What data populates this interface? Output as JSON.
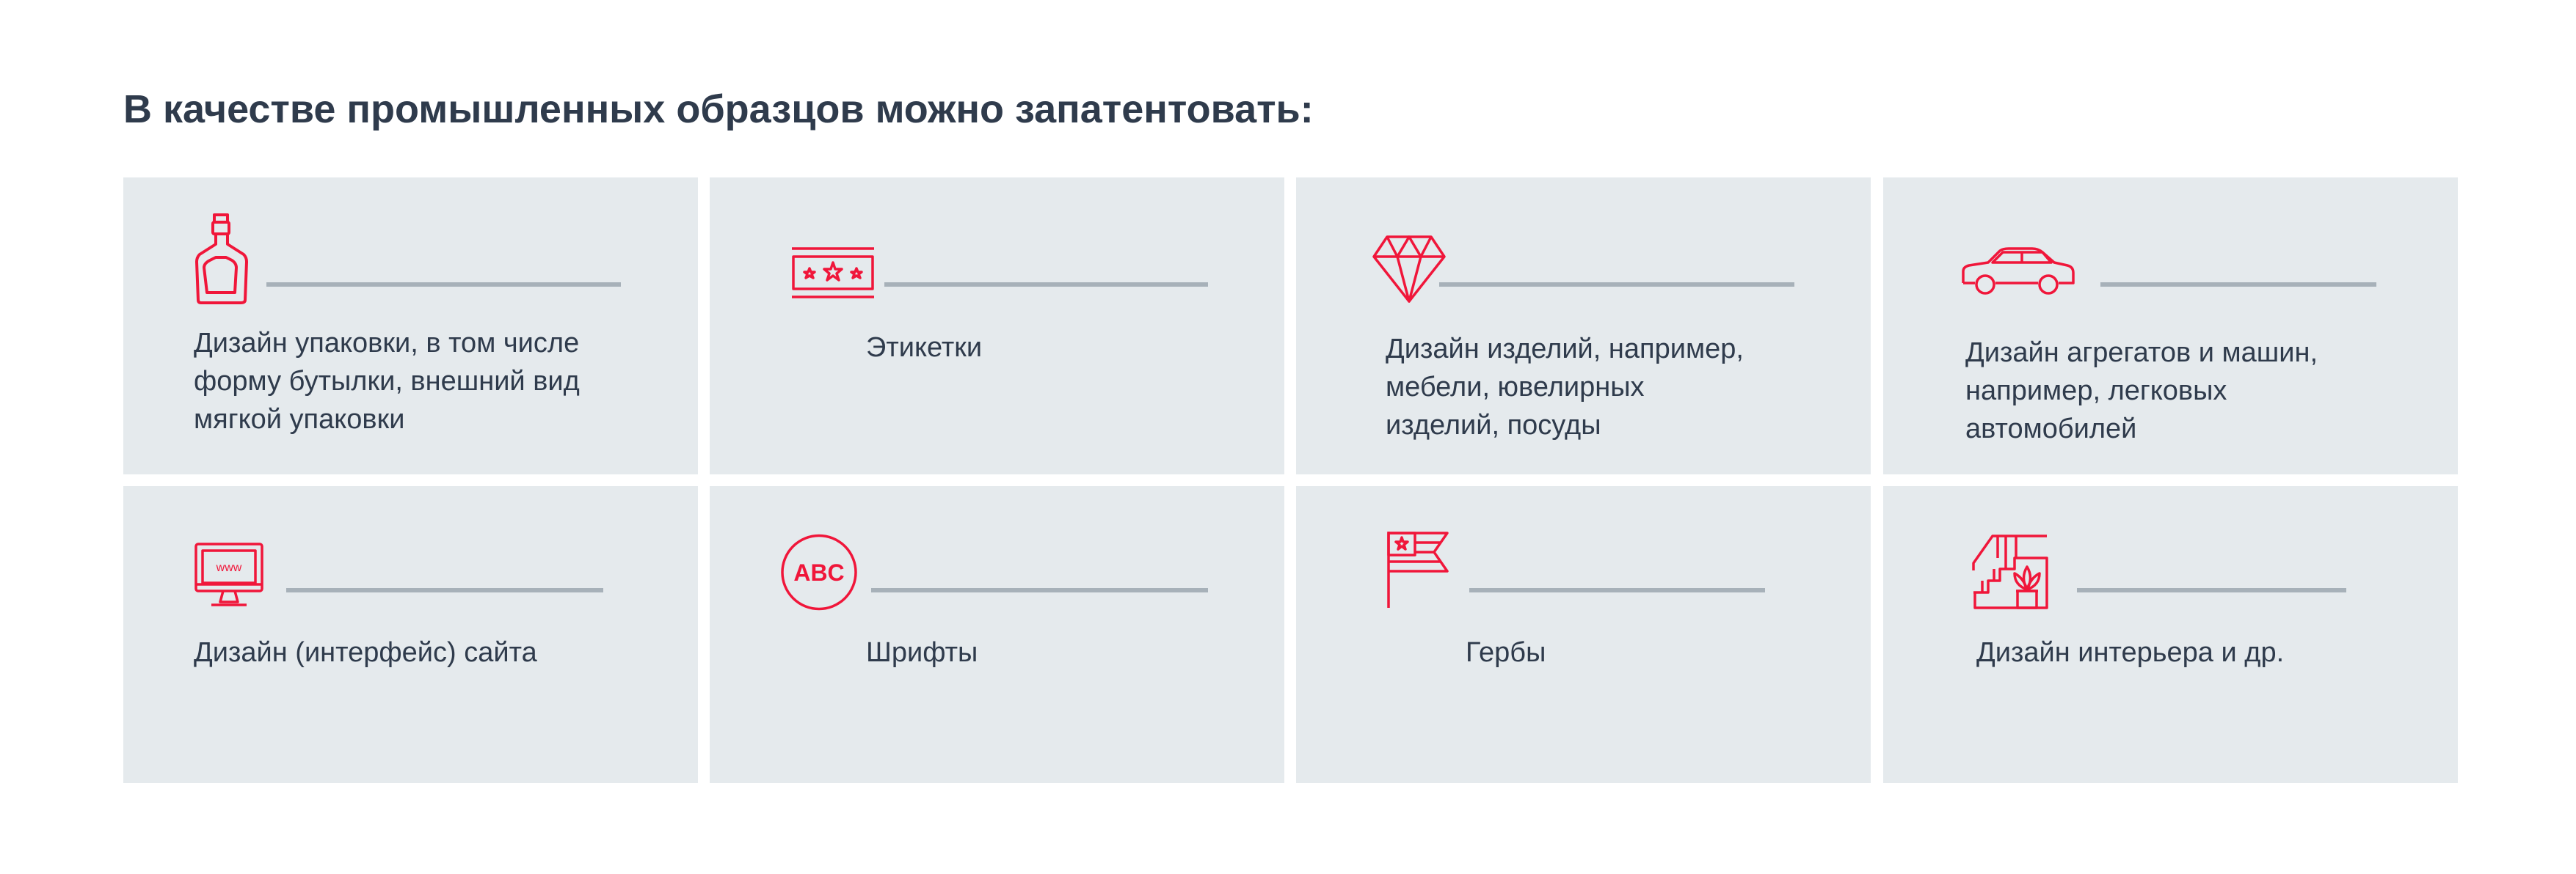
{
  "heading": "В качестве промышленных образцов можно запатентовать:",
  "colors": {
    "accent": "#f0163a",
    "card_bg": "#e5eaed",
    "text": "#2f3b4c",
    "rule": "#a7b1b9"
  },
  "items": [
    {
      "icon": "bottle-icon",
      "text": "Дизайн упаковки, в том числе\nформу бутылки, внешний вид\nмягкой упаковки"
    },
    {
      "icon": "label-icon",
      "text": "Этикетки"
    },
    {
      "icon": "diamond-icon",
      "text": "Дизайн изделий, например,\nмебели, ювелирных\nизделий, посуды"
    },
    {
      "icon": "car-icon",
      "text": "Дизайн агрегатов и машин,\nнапример, легковых\nавтомобилей"
    },
    {
      "icon": "monitor-icon",
      "text": "Дизайн (интерфейс) сайта",
      "icon_text": "www"
    },
    {
      "icon": "font-icon",
      "text": "Шрифты",
      "icon_text": "ABC"
    },
    {
      "icon": "flag-icon",
      "text": "Гербы"
    },
    {
      "icon": "interior-icon",
      "text": "Дизайн интерьера и др."
    }
  ]
}
